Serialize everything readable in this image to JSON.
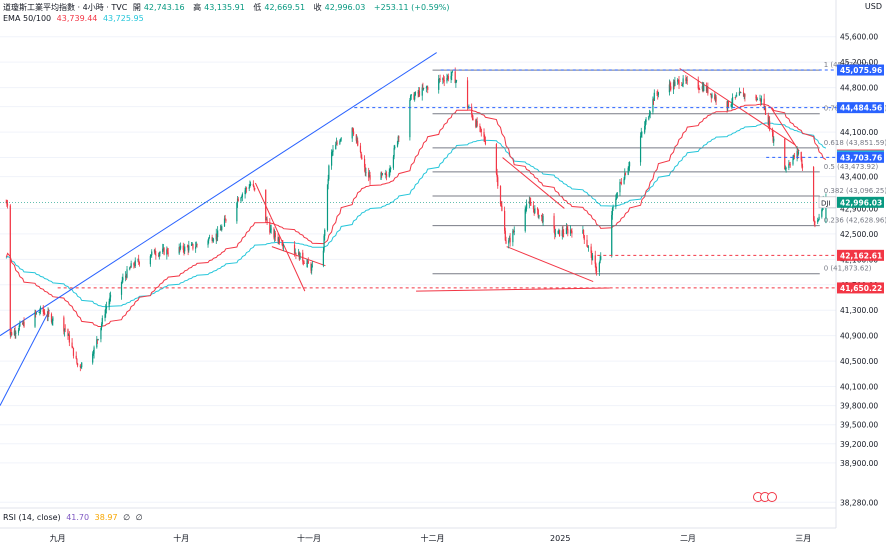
{
  "header": {
    "title": "道瓊斯工業平均指數 · 4小時 · TVC",
    "open_label": "開",
    "open": "42,743.16",
    "high_label": "高",
    "high": "43,135.91",
    "low_label": "低",
    "low": "42,669.51",
    "close_label": "收",
    "close": "42,996.03",
    "change": "+253.11 (+0.59%)"
  },
  "ema": {
    "label": "EMA 50/100",
    "v50": "43,739.44",
    "v100": "43,725.95"
  },
  "rsi": {
    "label": "RSI (14, close)",
    "v1": "41.70",
    "v2": "38.97",
    "v3": "∅",
    "v4": "∅"
  },
  "currency": "USD",
  "colors": {
    "up": "#089981",
    "down": "#f23645",
    "ema50": "#f23645",
    "ema100": "#26c6da",
    "trend_blue": "#2962ff",
    "fib": "#787b86"
  },
  "chart_data": {
    "type": "candlestick",
    "symbol": "DJI",
    "timeframe": "4小時",
    "x_labels": [
      "九月",
      "十月",
      "十一月",
      "十二月",
      "2025",
      "二月",
      "三月"
    ],
    "y_ticks": [
      38280,
      38900,
      39200,
      39500,
      39800,
      40100,
      40500,
      40900,
      41300,
      41700,
      42100,
      42500,
      42900,
      43400,
      43700,
      44100,
      44500,
      44800,
      45200,
      45600
    ],
    "ylim": [
      38050,
      45850
    ],
    "candles_summary": [
      {
        "t": "2024-08-20",
        "c": 40900
      },
      {
        "t": "2024-08-28",
        "c": 41300
      },
      {
        "t": "2024-09-03",
        "c": 41000
      },
      {
        "t": "2024-09-06",
        "c": 40400
      },
      {
        "t": "2024-09-10",
        "c": 40700
      },
      {
        "t": "2024-09-13",
        "c": 41400
      },
      {
        "t": "2024-09-19",
        "c": 42000
      },
      {
        "t": "2024-09-24",
        "c": 42200
      },
      {
        "t": "2024-09-30",
        "c": 42250
      },
      {
        "t": "2024-10-04",
        "c": 42300
      },
      {
        "t": "2024-10-10",
        "c": 42500
      },
      {
        "t": "2024-10-14",
        "c": 43000
      },
      {
        "t": "2024-10-18",
        "c": 43300
      },
      {
        "t": "2024-10-23",
        "c": 42500
      },
      {
        "t": "2024-10-29",
        "c": 42200
      },
      {
        "t": "2024-11-04",
        "c": 41800
      },
      {
        "t": "2024-11-06",
        "c": 43700
      },
      {
        "t": "2024-11-11",
        "c": 44300
      },
      {
        "t": "2024-11-15",
        "c": 43400
      },
      {
        "t": "2024-11-20",
        "c": 43400
      },
      {
        "t": "2024-11-25",
        "c": 44600
      },
      {
        "t": "2024-12-02",
        "c": 44900
      },
      {
        "t": "2024-12-06",
        "c": 45000
      },
      {
        "t": "2024-12-11",
        "c": 44300
      },
      {
        "t": "2024-12-16",
        "c": 43700
      },
      {
        "t": "2024-12-19",
        "c": 42300
      },
      {
        "t": "2024-12-24",
        "c": 43000
      },
      {
        "t": "2024-12-31",
        "c": 42500
      },
      {
        "t": "2025-01-06",
        "c": 42600
      },
      {
        "t": "2025-01-10",
        "c": 41900
      },
      {
        "t": "2025-01-15",
        "c": 43200
      },
      {
        "t": "2025-01-21",
        "c": 44100
      },
      {
        "t": "2025-01-24",
        "c": 44700
      },
      {
        "t": "2025-01-30",
        "c": 44900
      },
      {
        "t": "2025-02-05",
        "c": 44800
      },
      {
        "t": "2025-02-10",
        "c": 44500
      },
      {
        "t": "2025-02-14",
        "c": 44700
      },
      {
        "t": "2025-02-19",
        "c": 44600
      },
      {
        "t": "2025-02-24",
        "c": 43500
      },
      {
        "t": "2025-02-28",
        "c": 43800
      },
      {
        "t": "2025-03-04",
        "c": 42600
      },
      {
        "t": "2025-03-06",
        "c": 42996
      }
    ],
    "fib_levels": [
      {
        "label": "1 (45,074.22)",
        "price": 45074.22
      },
      {
        "label": "0.786 (44,389.29)",
        "price": 44389.29
      },
      {
        "label": "0.618 (43,851.59)",
        "price": 43851.59
      },
      {
        "label": "0.5 (43,473.92)",
        "price": 43473.92
      },
      {
        "label": "0.382 (43,096.25)",
        "price": 43096.25
      },
      {
        "label": "0.236 (42,628.96)",
        "price": 42628.96
      },
      {
        "label": "0 (41,873.62)",
        "price": 41873.62
      }
    ],
    "price_tags": [
      {
        "text": "45,075.96",
        "price": 45075.96,
        "color": "#2962ff"
      },
      {
        "text": "44,484.56",
        "price": 44484.56,
        "color": "#2962ff"
      },
      {
        "text": "43,739.44",
        "price": 43739.44,
        "color": "#f23645"
      },
      {
        "text": "43,725.95",
        "price": 43725.95,
        "color": "#26c6da"
      },
      {
        "text": "43,703.76",
        "price": 43703.76,
        "color": "#2962ff"
      },
      {
        "text": "42,996.03",
        "price": 42996.03,
        "color": "#089981"
      },
      {
        "text": "42,162.61",
        "price": 42162.61,
        "color": "#f23645"
      },
      {
        "text": "41,650.22",
        "price": 41650.22,
        "color": "#f23645"
      }
    ],
    "last_label": "DJI"
  }
}
